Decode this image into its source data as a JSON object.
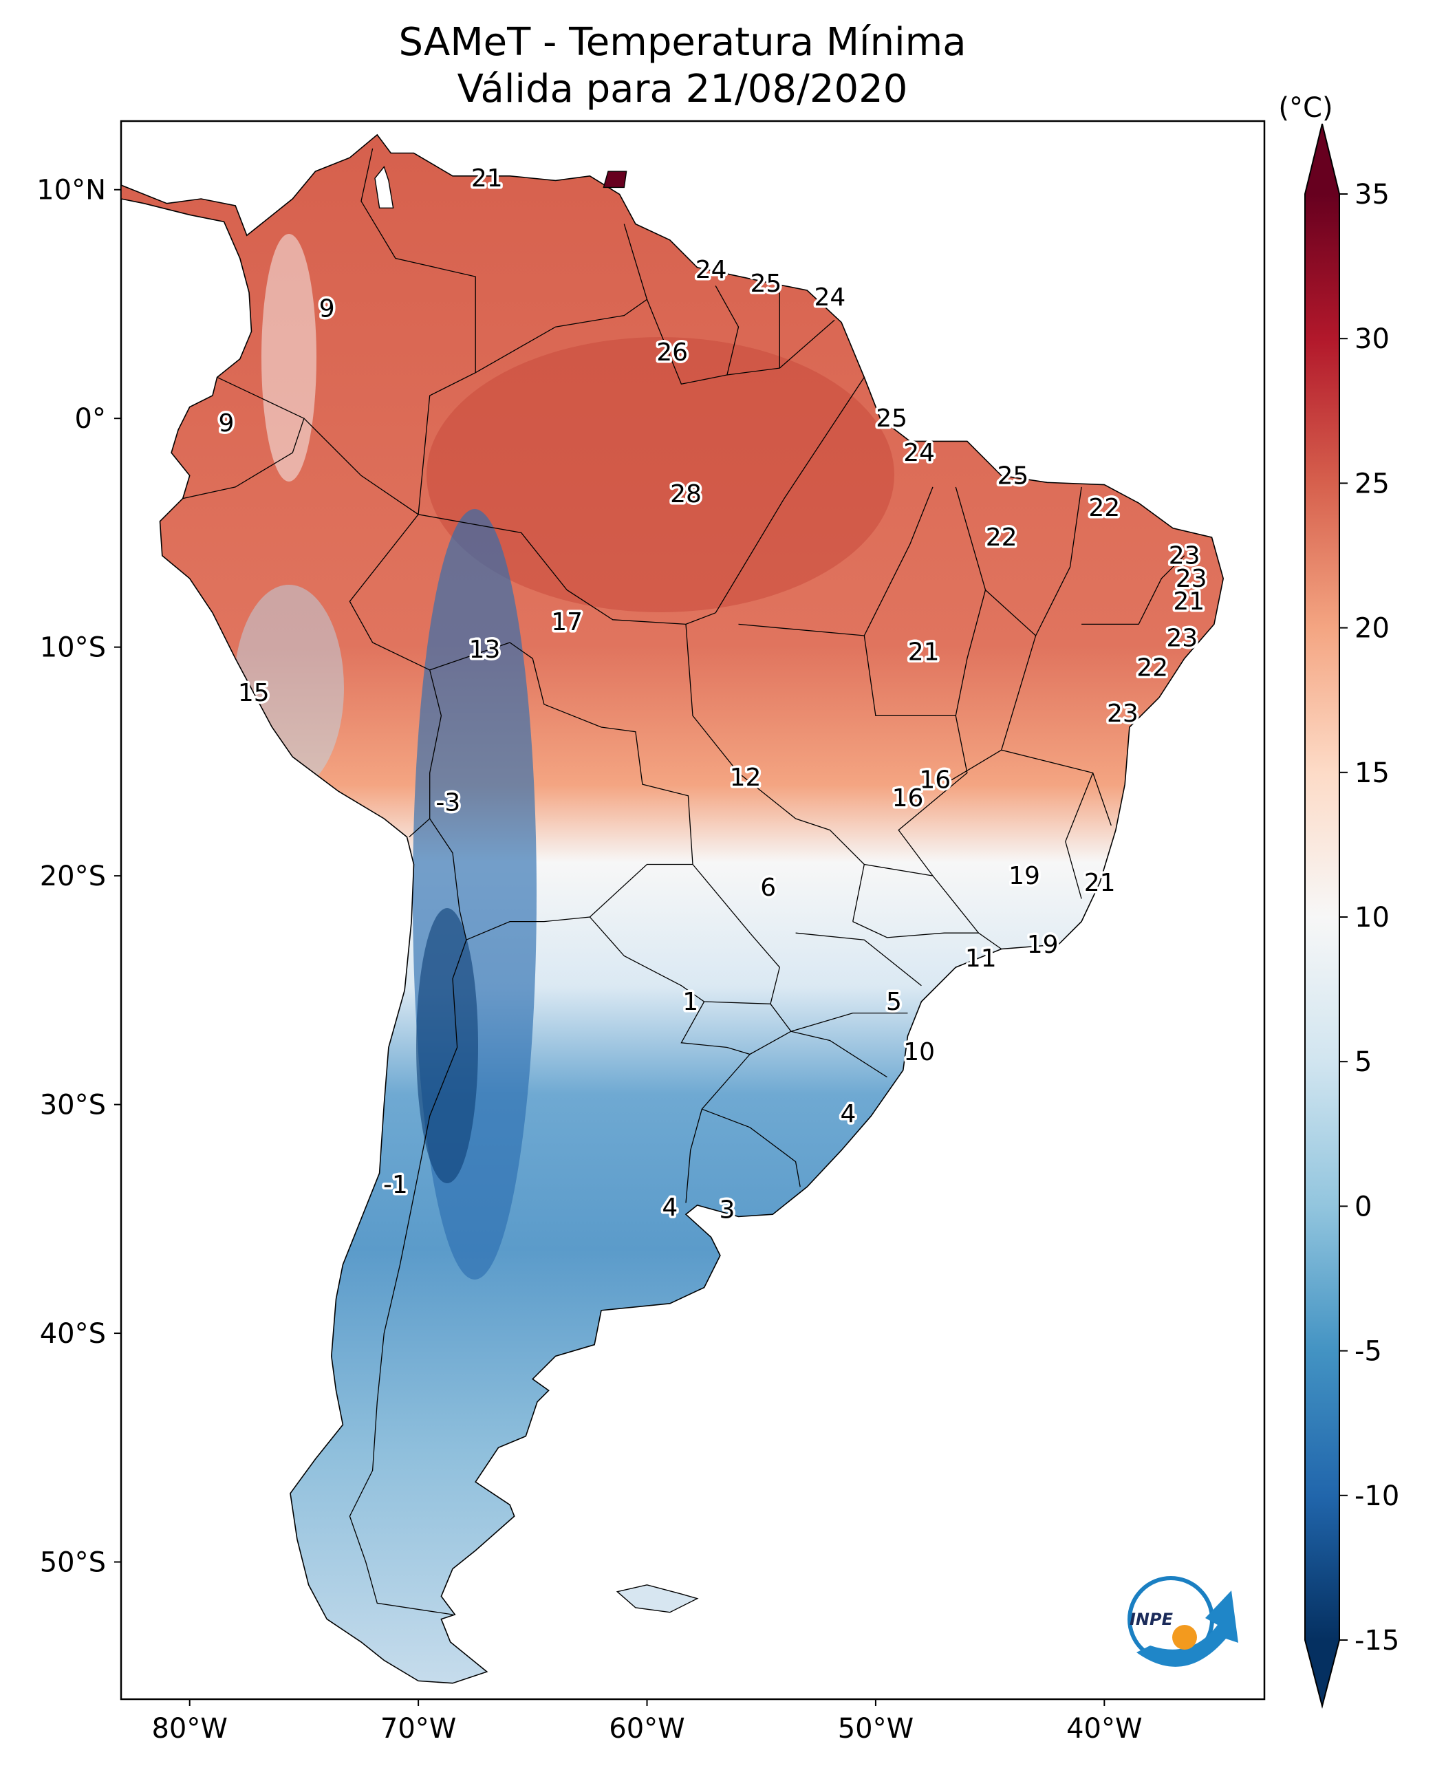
{
  "title_line1": "SAMeT - Temperatura Mínima",
  "title_line2": "Válida para 21/08/2020",
  "colorbar": {
    "unit": "(°C)",
    "min": -15,
    "max": 35,
    "ticks": [
      "35",
      "30",
      "25",
      "20",
      "15",
      "10",
      "5",
      "0",
      "-5",
      "-10",
      "-15"
    ],
    "colors": [
      "#053061",
      "#2166ac",
      "#4393c3",
      "#92c5de",
      "#d1e5f0",
      "#f7f7f7",
      "#fddbc7",
      "#f4a582",
      "#d6604d",
      "#b2182b",
      "#67001f"
    ]
  },
  "axes": {
    "lon_ticks": [
      "80°W",
      "70°W",
      "60°W",
      "50°W",
      "40°W"
    ],
    "lat_ticks": [
      "10°N",
      "0°",
      "10°S",
      "20°S",
      "30°S",
      "40°S",
      "50°S"
    ]
  },
  "logo_text": "INPE",
  "map_data": {
    "type": "contour-map",
    "lon_range": [
      -83,
      -33
    ],
    "lat_range": [
      -56,
      13
    ],
    "labels": [
      {
        "lon": -67.0,
        "lat": 10.5,
        "value": "21"
      },
      {
        "lon": -57.2,
        "lat": 6.5,
        "value": "24"
      },
      {
        "lon": -54.8,
        "lat": 5.9,
        "value": "25"
      },
      {
        "lon": -52.0,
        "lat": 5.3,
        "value": "24"
      },
      {
        "lon": -74.0,
        "lat": 4.8,
        "value": "9"
      },
      {
        "lon": -58.9,
        "lat": 2.9,
        "value": "26"
      },
      {
        "lon": -78.4,
        "lat": -0.2,
        "value": "9"
      },
      {
        "lon": -49.3,
        "lat": 0.0,
        "value": "25"
      },
      {
        "lon": -48.1,
        "lat": -1.5,
        "value": "24"
      },
      {
        "lon": -44.0,
        "lat": -2.5,
        "value": "25"
      },
      {
        "lon": -58.3,
        "lat": -3.3,
        "value": "28"
      },
      {
        "lon": -40.0,
        "lat": -3.9,
        "value": "22"
      },
      {
        "lon": -44.5,
        "lat": -5.2,
        "value": "22"
      },
      {
        "lon": -36.5,
        "lat": -6.0,
        "value": "23"
      },
      {
        "lon": -36.2,
        "lat": -7.0,
        "value": "23"
      },
      {
        "lon": -36.3,
        "lat": -8.0,
        "value": "21"
      },
      {
        "lon": -63.5,
        "lat": -8.9,
        "value": "17"
      },
      {
        "lon": -36.6,
        "lat": -9.6,
        "value": "23"
      },
      {
        "lon": -67.1,
        "lat": -10.1,
        "value": "13"
      },
      {
        "lon": -47.9,
        "lat": -10.2,
        "value": "21"
      },
      {
        "lon": -37.9,
        "lat": -10.9,
        "value": "22"
      },
      {
        "lon": -77.2,
        "lat": -12.0,
        "value": "15"
      },
      {
        "lon": -39.2,
        "lat": -12.9,
        "value": "23"
      },
      {
        "lon": -55.7,
        "lat": -15.7,
        "value": "12"
      },
      {
        "lon": -47.4,
        "lat": -15.8,
        "value": "16"
      },
      {
        "lon": -48.6,
        "lat": -16.6,
        "value": "16"
      },
      {
        "lon": -68.7,
        "lat": -16.8,
        "value": "-3"
      },
      {
        "lon": -43.5,
        "lat": -20.0,
        "value": "19"
      },
      {
        "lon": -40.2,
        "lat": -20.3,
        "value": "21"
      },
      {
        "lon": -54.7,
        "lat": -20.5,
        "value": "6"
      },
      {
        "lon": -42.7,
        "lat": -23.0,
        "value": "19"
      },
      {
        "lon": -45.4,
        "lat": -23.6,
        "value": "11"
      },
      {
        "lon": -58.1,
        "lat": -25.5,
        "value": "1"
      },
      {
        "lon": -49.2,
        "lat": -25.5,
        "value": "5"
      },
      {
        "lon": -48.1,
        "lat": -27.7,
        "value": "10"
      },
      {
        "lon": -51.2,
        "lat": -30.4,
        "value": "4"
      },
      {
        "lon": -71.0,
        "lat": -33.5,
        "value": "-1"
      },
      {
        "lon": -59.0,
        "lat": -34.5,
        "value": "4"
      },
      {
        "lon": -56.5,
        "lat": -34.6,
        "value": "3"
      }
    ]
  }
}
